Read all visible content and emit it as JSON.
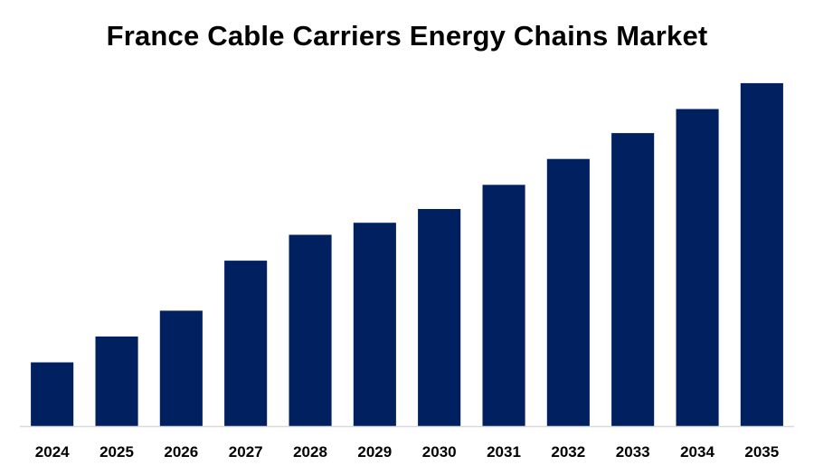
{
  "chart_data": {
    "type": "bar",
    "title": "France Cable Carriers Energy Chains Market",
    "categories": [
      "2024",
      "2025",
      "2026",
      "2027",
      "2028",
      "2029",
      "2030",
      "2031",
      "2032",
      "2033",
      "2034",
      "2035"
    ],
    "values": [
      18.5,
      26,
      33.5,
      48,
      55.5,
      59,
      63,
      70,
      77.5,
      85,
      92,
      99.5
    ],
    "xlabel": "",
    "ylabel": "",
    "ylim": [
      0,
      100
    ],
    "grid": false,
    "legend": "none",
    "bar_color": "#002060",
    "axis_color": "#d9d9d9"
  }
}
